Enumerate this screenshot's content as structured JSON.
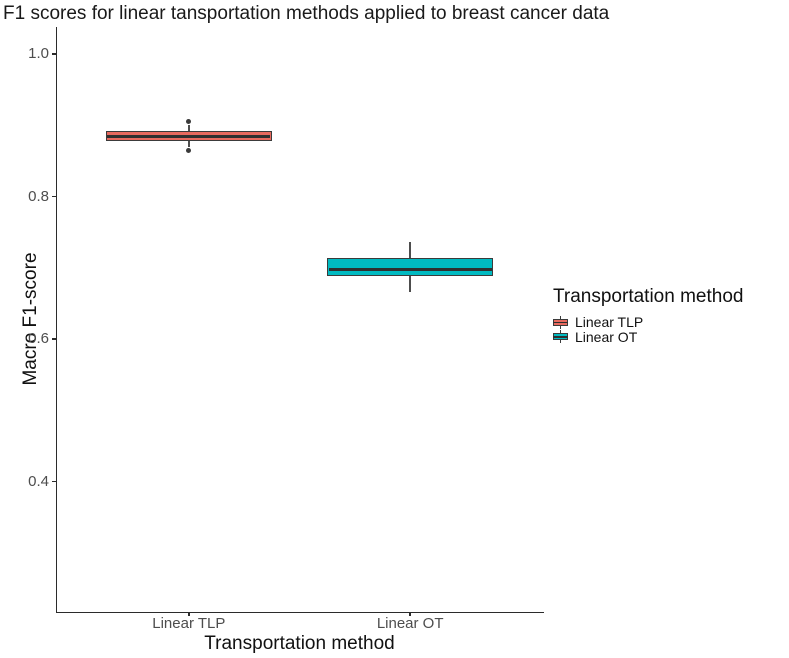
{
  "chart_data": {
    "type": "boxplot",
    "title": "F1 scores for linear tansportation methods applied to breast cancer data",
    "xlabel": "Transportation method",
    "ylabel": "Macro F1-score",
    "ylim": [
      0.217,
      1.038
    ],
    "yticks": [
      1.0,
      0.8,
      0.6,
      0.4
    ],
    "ytick_labels": [
      "1.0",
      "0.8",
      "0.6",
      "0.4"
    ],
    "categories": [
      "Linear TLP",
      "Linear OT"
    ],
    "grid": "off",
    "legend_position": "right",
    "legend": {
      "title": "Transportation method",
      "entries": [
        {
          "label": "Linear TLP",
          "color": "#E8695E"
        },
        {
          "label": "Linear OT",
          "color": "#00BAC1"
        }
      ]
    },
    "series": [
      {
        "name": "Linear TLP",
        "fill": "#E8695E",
        "whisker_low": 0.869,
        "q1": 0.878,
        "median": 0.885,
        "q3": 0.892,
        "whisker_high": 0.901,
        "outliers": [
          0.906,
          0.864
        ]
      },
      {
        "name": "Linear OT",
        "fill": "#00BAC1",
        "whisker_low": 0.666,
        "q1": 0.689,
        "median": 0.698,
        "q3": 0.714,
        "whisker_high": 0.736,
        "outliers": []
      }
    ],
    "colors": {
      "box_border": "#3B3B3B",
      "median": "#2F2F2F",
      "whisker": "#4D4D4D",
      "axis": "#2B2B2B",
      "tick_label": "#4D4D4D",
      "outlier": "#3A3A3A"
    }
  }
}
